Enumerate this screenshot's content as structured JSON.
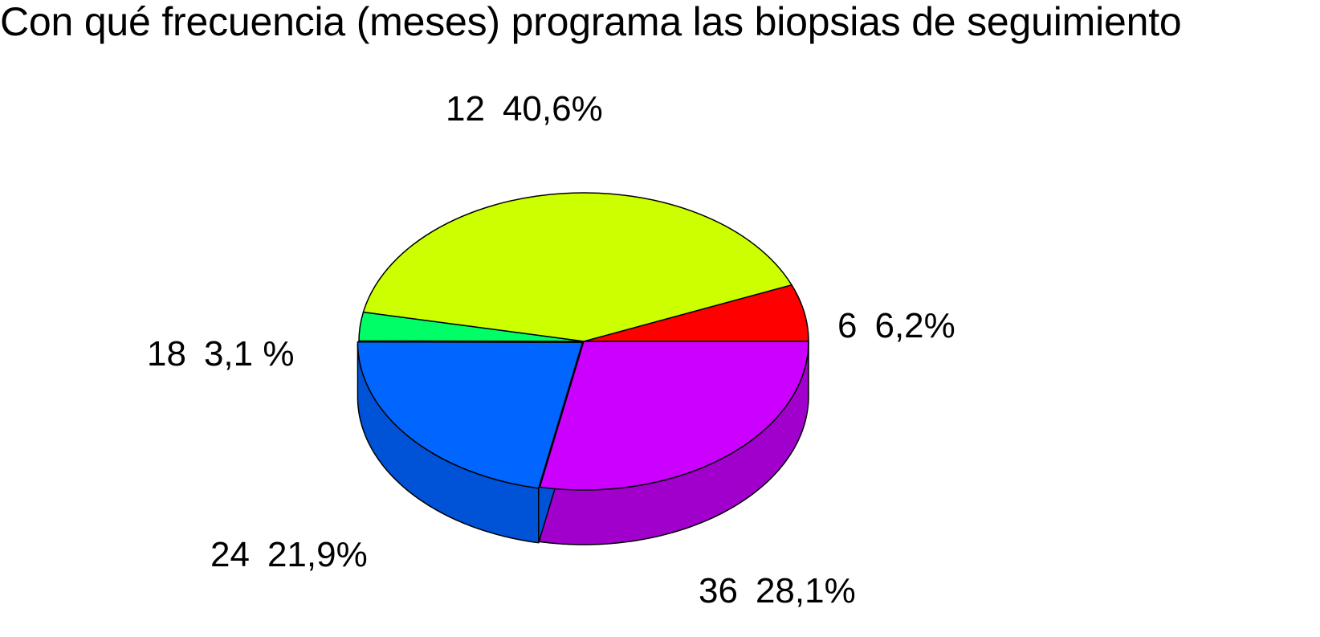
{
  "chart_data": {
    "type": "pie",
    "title": "Con qué frecuencia (meses) programa las biopsias de seguimiento",
    "slices": [
      {
        "category": "6",
        "value": 6.2,
        "value_label": "6,2%",
        "color": "#ff0000",
        "side_color": "#b20000"
      },
      {
        "category": "12",
        "value": 40.6,
        "value_label": "40,6%",
        "color": "#ccff00",
        "side_color": "#8fb300"
      },
      {
        "category": "18",
        "value": 3.1,
        "value_label": "3,1 %",
        "color": "#00ff66",
        "side_color": "#00b347"
      },
      {
        "category": "24",
        "value": 21.9,
        "value_label": "21,9%",
        "color": "#0066ff",
        "side_color": "#0052d6"
      },
      {
        "category": "36",
        "value": 28.1,
        "value_label": "28,1%",
        "color": "#cc00ff",
        "side_color": "#a100cc"
      }
    ],
    "legend": "none",
    "style": "3d"
  }
}
